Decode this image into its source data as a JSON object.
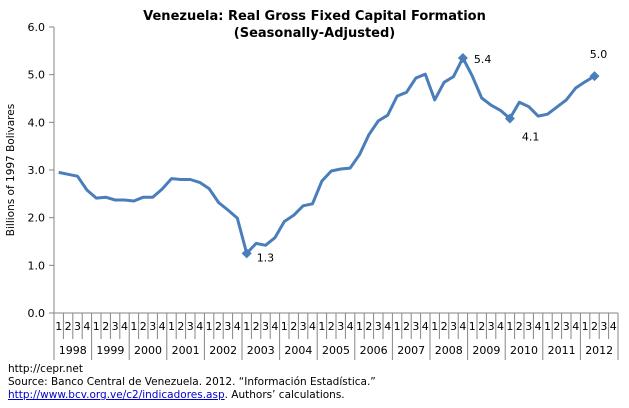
{
  "chart_data": {
    "type": "line",
    "title": "Venezuela: Real Gross Fixed Capital Formation",
    "subtitle": "(Seasonally-Adjusted)",
    "ylabel": "Billions of 1997 Bolivares",
    "xlabel": "",
    "ylim": [
      0,
      6
    ],
    "yticks": [
      "0.0",
      "1.0",
      "2.0",
      "3.0",
      "4.0",
      "5.0",
      "6.0"
    ],
    "grid": false,
    "legend": "none",
    "line_color": "#4a7ebb",
    "quarter_labels": [
      "1",
      "2",
      "3",
      "4"
    ],
    "years": [
      "1998",
      "1999",
      "2000",
      "2001",
      "2002",
      "2003",
      "2004",
      "2005",
      "2006",
      "2007",
      "2008",
      "2009",
      "2010",
      "2011",
      "2012"
    ],
    "values": [
      2.95,
      2.91,
      2.87,
      2.58,
      2.41,
      2.43,
      2.37,
      2.37,
      2.35,
      2.43,
      2.43,
      2.6,
      2.82,
      2.8,
      2.8,
      2.74,
      2.61,
      2.32,
      2.16,
      1.99,
      1.25,
      1.46,
      1.42,
      1.58,
      1.92,
      2.05,
      2.25,
      2.29,
      2.77,
      2.98,
      3.02,
      3.04,
      3.32,
      3.74,
      4.03,
      4.15,
      4.55,
      4.63,
      4.93,
      5.01,
      4.47,
      4.84,
      4.96,
      5.35,
      4.97,
      4.51,
      4.36,
      4.25,
      4.08,
      4.42,
      4.33,
      4.13,
      4.17,
      4.32,
      4.47,
      4.72,
      4.85,
      4.97
    ],
    "annotations": [
      {
        "index": 20,
        "label": "1.3"
      },
      {
        "index": 43,
        "label": "5.4"
      },
      {
        "index": 48,
        "label": "4.1"
      },
      {
        "index": 57,
        "label": "5.0"
      }
    ]
  },
  "source": {
    "line1": "http://cepr.net",
    "line2": "Source: Banco Central de Venezuela. 2012. “Información Estadística.”",
    "link": "http://www.bcv.org.ve/c2/indicadores.asp",
    "line3_suffix": ". Authors’ calculations."
  }
}
